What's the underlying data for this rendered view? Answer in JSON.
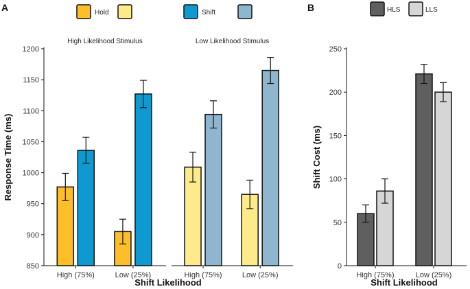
{
  "panel_a_letter": "A",
  "panel_b_letter": "B",
  "chart_data": [
    {
      "type": "bar",
      "panel": "A",
      "ylabel": "Response Time (ms)",
      "xlabel": "Shift Likelihood",
      "ylim": [
        850,
        1200
      ],
      "yticks": [
        850,
        900,
        950,
        1000,
        1050,
        1100,
        1150,
        1200
      ],
      "categories": [
        "High (75%)",
        "Low (25%)"
      ],
      "legend": [
        {
          "label": "Hold",
          "color": "#FDBE2A"
        },
        {
          "label": "",
          "color": "#FDEA8A"
        },
        {
          "label": "Shift",
          "color": "#0E9AD0"
        },
        {
          "label": "",
          "color": "#8FB6CF"
        }
      ],
      "subplots": [
        {
          "title": "High Likelihood Stimulus",
          "series": [
            {
              "name": "Hold",
              "color": "#FDBE2A",
              "values": [
                977,
                905
              ],
              "errors": [
                22,
                20
              ]
            },
            {
              "name": "Shift",
              "color": "#0E9AD0",
              "values": [
                1036,
                1127
              ],
              "errors": [
                21,
                22
              ]
            }
          ]
        },
        {
          "title": "Low Likelihood Stimulus",
          "series": [
            {
              "color": "#FDEA8A",
              "values": [
                1009,
                965
              ],
              "errors": [
                24,
                23
              ]
            },
            {
              "color": "#8FB6CF",
              "values": [
                1094,
                1165
              ],
              "errors": [
                22,
                21
              ]
            }
          ]
        }
      ]
    },
    {
      "type": "bar",
      "panel": "B",
      "ylabel": "Shift Cost (ms)",
      "xlabel": "Shift Likelihood",
      "ylim": [
        0,
        250
      ],
      "yticks": [
        0,
        50,
        100,
        150,
        200,
        250
      ],
      "categories": [
        "High (75%)",
        "Low (25%)"
      ],
      "legend": [
        {
          "label": "HLS",
          "color": "#5F5F5F"
        },
        {
          "label": "LLS",
          "color": "#D6D6D6"
        }
      ],
      "series": [
        {
          "name": "HLS",
          "color": "#5F5F5F",
          "values": [
            60,
            221
          ],
          "errors": [
            10,
            11
          ]
        },
        {
          "name": "LLS",
          "color": "#D6D6D6",
          "values": [
            86,
            200
          ],
          "errors": [
            14,
            11
          ]
        }
      ]
    }
  ]
}
